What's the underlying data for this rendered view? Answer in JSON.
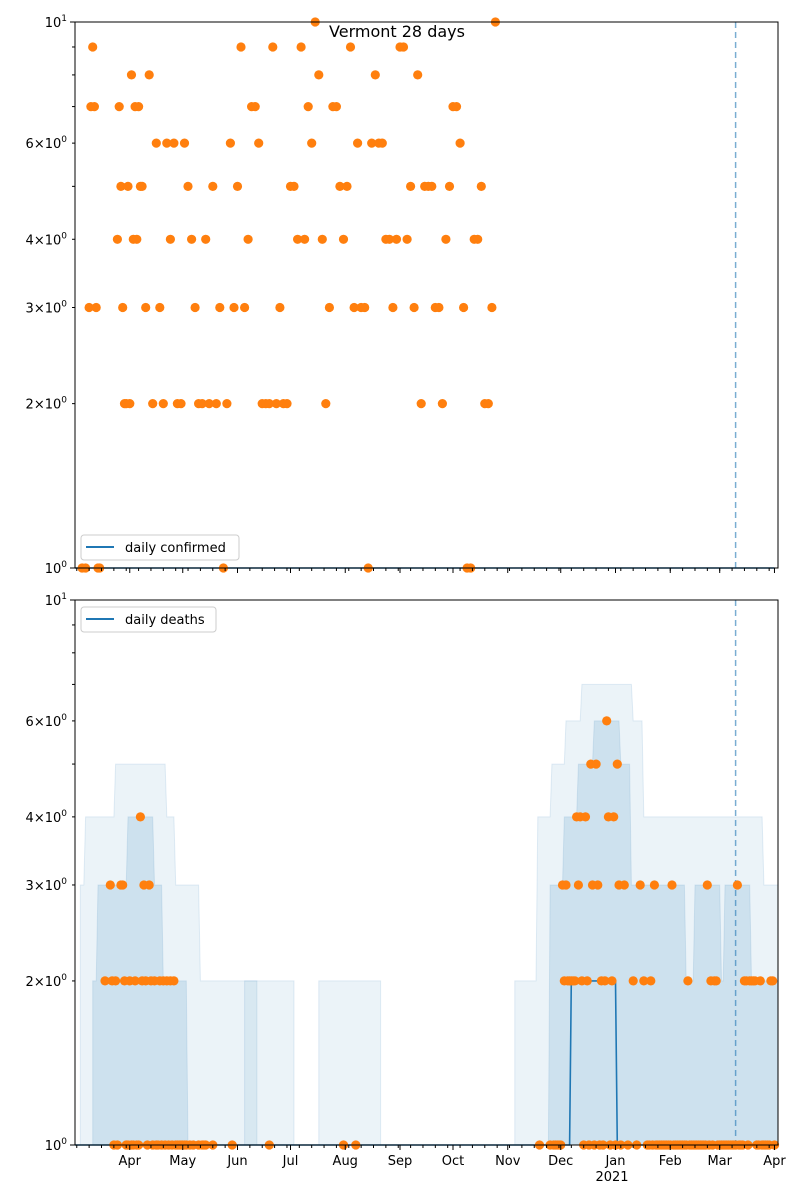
{
  "chart_data": [
    {
      "type": "scatter",
      "title": "Vermont 28 days",
      "yscale": "log",
      "ylim": [
        1,
        10
      ],
      "y_tick_labels": [
        "10^0",
        "2×10^0",
        "3×10^0",
        "4×10^0",
        "6×10^0",
        "10^1"
      ],
      "legend": {
        "position": "bottom-left",
        "entries": [
          "daily confirmed"
        ]
      },
      "x_tick_labels": [],
      "vline": {
        "date": "2021-03-10",
        "style": "dashed"
      },
      "series": [
        {
          "name": "daily confirmed",
          "kind": "line",
          "x": [
            "2020-03-01",
            "2021-04-01"
          ],
          "y": [
            1,
            1
          ]
        },
        {
          "kind": "scatter",
          "x": [
            "2020-03-05",
            "2020-03-07",
            "2020-03-09",
            "2020-03-10",
            "2020-03-11",
            "2020-03-12",
            "2020-03-13",
            "2020-03-14",
            "2020-03-15",
            "2020-03-25",
            "2020-03-26",
            "2020-03-27",
            "2020-03-28",
            "2020-03-29",
            "2020-03-30",
            "2020-03-31",
            "2020-04-01",
            "2020-04-02",
            "2020-04-03",
            "2020-04-04",
            "2020-04-05",
            "2020-04-06",
            "2020-04-07",
            "2020-04-08",
            "2020-04-10",
            "2020-04-12",
            "2020-04-14",
            "2020-04-16",
            "2020-04-18",
            "2020-04-20",
            "2020-04-22",
            "2020-04-24",
            "2020-04-26",
            "2020-04-28",
            "2020-04-30",
            "2020-05-02",
            "2020-05-04",
            "2020-05-06",
            "2020-05-08",
            "2020-05-10",
            "2020-05-12",
            "2020-05-14",
            "2020-05-16",
            "2020-05-18",
            "2020-05-20",
            "2020-05-22",
            "2020-05-24",
            "2020-05-26",
            "2020-05-28",
            "2020-05-30",
            "2020-06-01",
            "2020-06-03",
            "2020-06-05",
            "2020-06-07",
            "2020-06-09",
            "2020-06-11",
            "2020-06-13",
            "2020-06-15",
            "2020-06-17",
            "2020-06-19",
            "2020-06-21",
            "2020-06-23",
            "2020-06-25",
            "2020-06-27",
            "2020-06-29",
            "2020-07-01",
            "2020-07-03",
            "2020-07-05",
            "2020-07-07",
            "2020-07-09",
            "2020-07-11",
            "2020-07-13",
            "2020-07-15",
            "2020-07-17",
            "2020-07-19",
            "2020-07-21",
            "2020-07-23",
            "2020-07-25",
            "2020-07-27",
            "2020-07-29",
            "2020-07-31",
            "2020-08-02",
            "2020-08-04",
            "2020-08-06",
            "2020-08-08",
            "2020-08-10",
            "2020-08-12",
            "2020-08-14",
            "2020-08-16",
            "2020-08-18",
            "2020-08-20",
            "2020-08-22",
            "2020-08-24",
            "2020-08-26",
            "2020-08-28",
            "2020-08-30",
            "2020-09-01",
            "2020-09-03",
            "2020-09-05",
            "2020-09-07",
            "2020-09-09",
            "2020-09-11",
            "2020-09-13",
            "2020-09-15",
            "2020-09-17",
            "2020-09-19",
            "2020-09-21",
            "2020-09-23",
            "2020-09-25",
            "2020-09-27",
            "2020-09-29",
            "2020-10-01",
            "2020-10-03",
            "2020-10-05",
            "2020-10-07",
            "2020-10-09",
            "2020-10-11",
            "2020-10-13",
            "2020-10-15",
            "2020-10-17",
            "2020-10-19",
            "2020-10-21",
            "2020-10-23",
            "2020-10-25"
          ],
          "y": [
            1,
            1,
            3,
            7,
            9,
            7,
            3,
            1,
            1,
            4,
            7,
            5,
            3,
            2,
            2,
            5,
            2,
            8,
            4,
            7,
            4,
            7,
            5,
            5,
            3,
            8,
            2,
            6,
            3,
            2,
            6,
            4,
            6,
            2,
            2,
            6,
            5,
            4,
            3,
            2,
            2,
            4,
            2,
            5,
            2,
            3,
            1,
            2,
            6,
            3,
            5,
            9,
            3,
            4,
            7,
            7,
            6,
            2,
            2,
            2,
            9,
            2,
            3,
            2,
            2,
            5,
            5,
            4,
            9,
            4,
            7,
            6,
            10,
            8,
            4,
            2,
            3,
            7,
            7,
            5,
            4,
            5,
            9,
            3,
            6,
            3,
            3,
            1,
            6,
            8,
            6,
            6,
            4,
            4,
            3,
            4,
            9,
            9,
            4,
            5,
            3,
            8,
            2,
            5,
            5,
            5,
            3,
            3,
            2,
            4,
            5,
            7,
            7,
            6,
            3,
            1,
            1,
            4,
            4,
            5,
            2,
            2,
            3,
            10
          ]
        }
      ]
    },
    {
      "type": "scatter",
      "title": "",
      "yscale": "log",
      "ylim": [
        1,
        10
      ],
      "y_tick_labels": [
        "10^0",
        "2×10^0",
        "3×10^0",
        "4×10^0",
        "6×10^0",
        "10^1"
      ],
      "legend": {
        "position": "top-left",
        "entries": [
          "daily deaths"
        ]
      },
      "x_tick_labels": [
        "Apr",
        "May",
        "Jun",
        "Jul",
        "Aug",
        "Sep",
        "Oct",
        "Nov",
        "Dec",
        "Jan",
        "Feb",
        "Mar",
        "Apr"
      ],
      "x_year_label": "2021",
      "vline": {
        "date": "2021-03-10",
        "style": "dashed"
      },
      "series": [
        {
          "name": "daily deaths",
          "kind": "line",
          "x": [
            "2020-03-01",
            "2020-12-06",
            "2020-12-07",
            "2021-01-01",
            "2021-01-02",
            "2021-04-01"
          ],
          "y": [
            1,
            1,
            2,
            2,
            1,
            1
          ]
        },
        {
          "kind": "scatter",
          "x": [
            "2020-03-18",
            "2020-03-21",
            "2020-03-22",
            "2020-03-23",
            "2020-03-24",
            "2020-03-25",
            "2020-03-27",
            "2020-03-28",
            "2020-03-29",
            "2020-03-30",
            "2020-03-31",
            "2020-04-01",
            "2020-04-02",
            "2020-04-03",
            "2020-04-04",
            "2020-04-05",
            "2020-04-06",
            "2020-04-07",
            "2020-04-08",
            "2020-04-09",
            "2020-04-10",
            "2020-04-11",
            "2020-04-12",
            "2020-04-13",
            "2020-04-14",
            "2020-04-15",
            "2020-04-16",
            "2020-04-17",
            "2020-04-18",
            "2020-04-19",
            "2020-04-20",
            "2020-04-21",
            "2020-04-22",
            "2020-04-23",
            "2020-04-24",
            "2020-04-25",
            "2020-04-26",
            "2020-04-27",
            "2020-04-28",
            "2020-04-29",
            "2020-04-30",
            "2020-05-01",
            "2020-05-02",
            "2020-05-03",
            "2020-05-05",
            "2020-05-07",
            "2020-05-10",
            "2020-05-12",
            "2020-05-13",
            "2020-05-14",
            "2020-05-18",
            "2020-05-29",
            "2020-06-19",
            "2020-07-31",
            "2020-08-07",
            "2020-11-19",
            "2020-11-25",
            "2020-11-27",
            "2020-11-28",
            "2020-11-29",
            "2020-11-30",
            "2020-12-01",
            "2020-12-02",
            "2020-12-03",
            "2020-12-04",
            "2020-12-05",
            "2020-12-06",
            "2020-12-07",
            "2020-12-08",
            "2020-12-09",
            "2020-12-10",
            "2020-12-11",
            "2020-12-12",
            "2020-12-13",
            "2020-12-14",
            "2020-12-15",
            "2020-12-16",
            "2020-12-17",
            "2020-12-18",
            "2020-12-19",
            "2020-12-20",
            "2020-12-21",
            "2020-12-22",
            "2020-12-23",
            "2020-12-24",
            "2020-12-25",
            "2020-12-26",
            "2020-12-27",
            "2020-12-28",
            "2020-12-29",
            "2020-12-30",
            "2020-12-31",
            "2021-01-01",
            "2021-01-02",
            "2021-01-03",
            "2021-01-04",
            "2021-01-06",
            "2021-01-08",
            "2021-01-11",
            "2021-01-13",
            "2021-01-15",
            "2021-01-17",
            "2021-01-19",
            "2021-01-20",
            "2021-01-21",
            "2021-01-22",
            "2021-01-23",
            "2021-01-24",
            "2021-01-25",
            "2021-01-26",
            "2021-01-27",
            "2021-01-28",
            "2021-01-29",
            "2021-01-30",
            "2021-01-31",
            "2021-02-01",
            "2021-02-02",
            "2021-02-03",
            "2021-02-04",
            "2021-02-05",
            "2021-02-06",
            "2021-02-07",
            "2021-02-08",
            "2021-02-09",
            "2021-02-10",
            "2021-02-11",
            "2021-02-12",
            "2021-02-13",
            "2021-02-14",
            "2021-02-15",
            "2021-02-16",
            "2021-02-17",
            "2021-02-18",
            "2021-02-19",
            "2021-02-20",
            "2021-02-21",
            "2021-02-22",
            "2021-02-23",
            "2021-02-24",
            "2021-02-25",
            "2021-02-26",
            "2021-02-27",
            "2021-02-28",
            "2021-03-01",
            "2021-03-02",
            "2021-03-03",
            "2021-03-04",
            "2021-03-05",
            "2021-03-06",
            "2021-03-07",
            "2021-03-08",
            "2021-03-09",
            "2021-03-10",
            "2021-03-11",
            "2021-03-12",
            "2021-03-13",
            "2021-03-14",
            "2021-03-15",
            "2021-03-16",
            "2021-03-17",
            "2021-03-18",
            "2021-03-19",
            "2021-03-20",
            "2021-03-21",
            "2021-03-22",
            "2021-03-23",
            "2021-03-24",
            "2021-03-25",
            "2021-03-26",
            "2021-03-27",
            "2021-03-28",
            "2021-03-29",
            "2021-03-30",
            "2021-03-31",
            "2021-04-01"
          ],
          "y": [
            2,
            3,
            2,
            1,
            2,
            1,
            3,
            3,
            2,
            1,
            1,
            2,
            1,
            1,
            2,
            1,
            1,
            4,
            2,
            3,
            2,
            1,
            3,
            2,
            1,
            2,
            1,
            1,
            2,
            1,
            2,
            1,
            2,
            1,
            2,
            1,
            2,
            1,
            1,
            1,
            1,
            1,
            1,
            1,
            1,
            1,
            1,
            1,
            1,
            1,
            1,
            1,
            1,
            1,
            1,
            1,
            1,
            1,
            1,
            1,
            1,
            1,
            3,
            2,
            3,
            2,
            2,
            2,
            2,
            2,
            4,
            3,
            4,
            2,
            1,
            4,
            2,
            1,
            5,
            3,
            1,
            5,
            3,
            1,
            2,
            1,
            2,
            6,
            4,
            1,
            2,
            4,
            1,
            5,
            3,
            1,
            3,
            1,
            2,
            1,
            3,
            2,
            1,
            1,
            2,
            1,
            3,
            1,
            1,
            1,
            1,
            1,
            1,
            1,
            1,
            1,
            3,
            1,
            1,
            1,
            1,
            1,
            1,
            1,
            1,
            2,
            1,
            1,
            1,
            1,
            1,
            1,
            1,
            1,
            1,
            1,
            3,
            1,
            2,
            1,
            2,
            2,
            1,
            1,
            1,
            1,
            1,
            1,
            1,
            1,
            1,
            1,
            1,
            3,
            1,
            1,
            1,
            2,
            2,
            1,
            2,
            2,
            2,
            2,
            1,
            1,
            2,
            1,
            1,
            1,
            1,
            1,
            2,
            2,
            1
          ]
        }
      ]
    }
  ]
}
